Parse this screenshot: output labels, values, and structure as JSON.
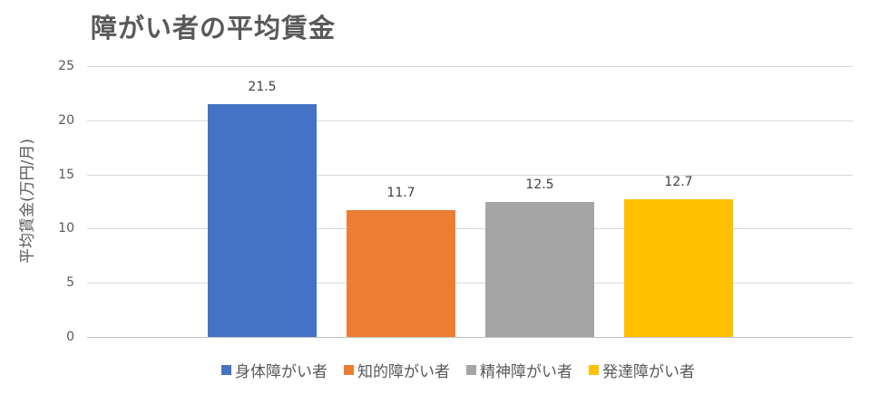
{
  "title": "障がい者の平均賃金",
  "chart_data": {
    "type": "bar",
    "title": "障がい者の平均賃金",
    "xlabel": "",
    "ylabel": "平均賃金(万円/月)",
    "ylim": [
      0,
      25
    ],
    "yticks": [
      "0",
      "5",
      "10",
      "15",
      "20",
      "25"
    ],
    "grid": true,
    "legend_position": "bottom",
    "categories": [
      "身体障がい者",
      "知的障がい者",
      "精神障がい者",
      "発達障がい者"
    ],
    "values": [
      21.5,
      11.7,
      12.5,
      12.7
    ],
    "value_labels": [
      "21.5",
      "11.7",
      "12.5",
      "12.7"
    ],
    "colors": [
      "#4472c4",
      "#ed7d31",
      "#a5a5a5",
      "#ffc000"
    ]
  }
}
